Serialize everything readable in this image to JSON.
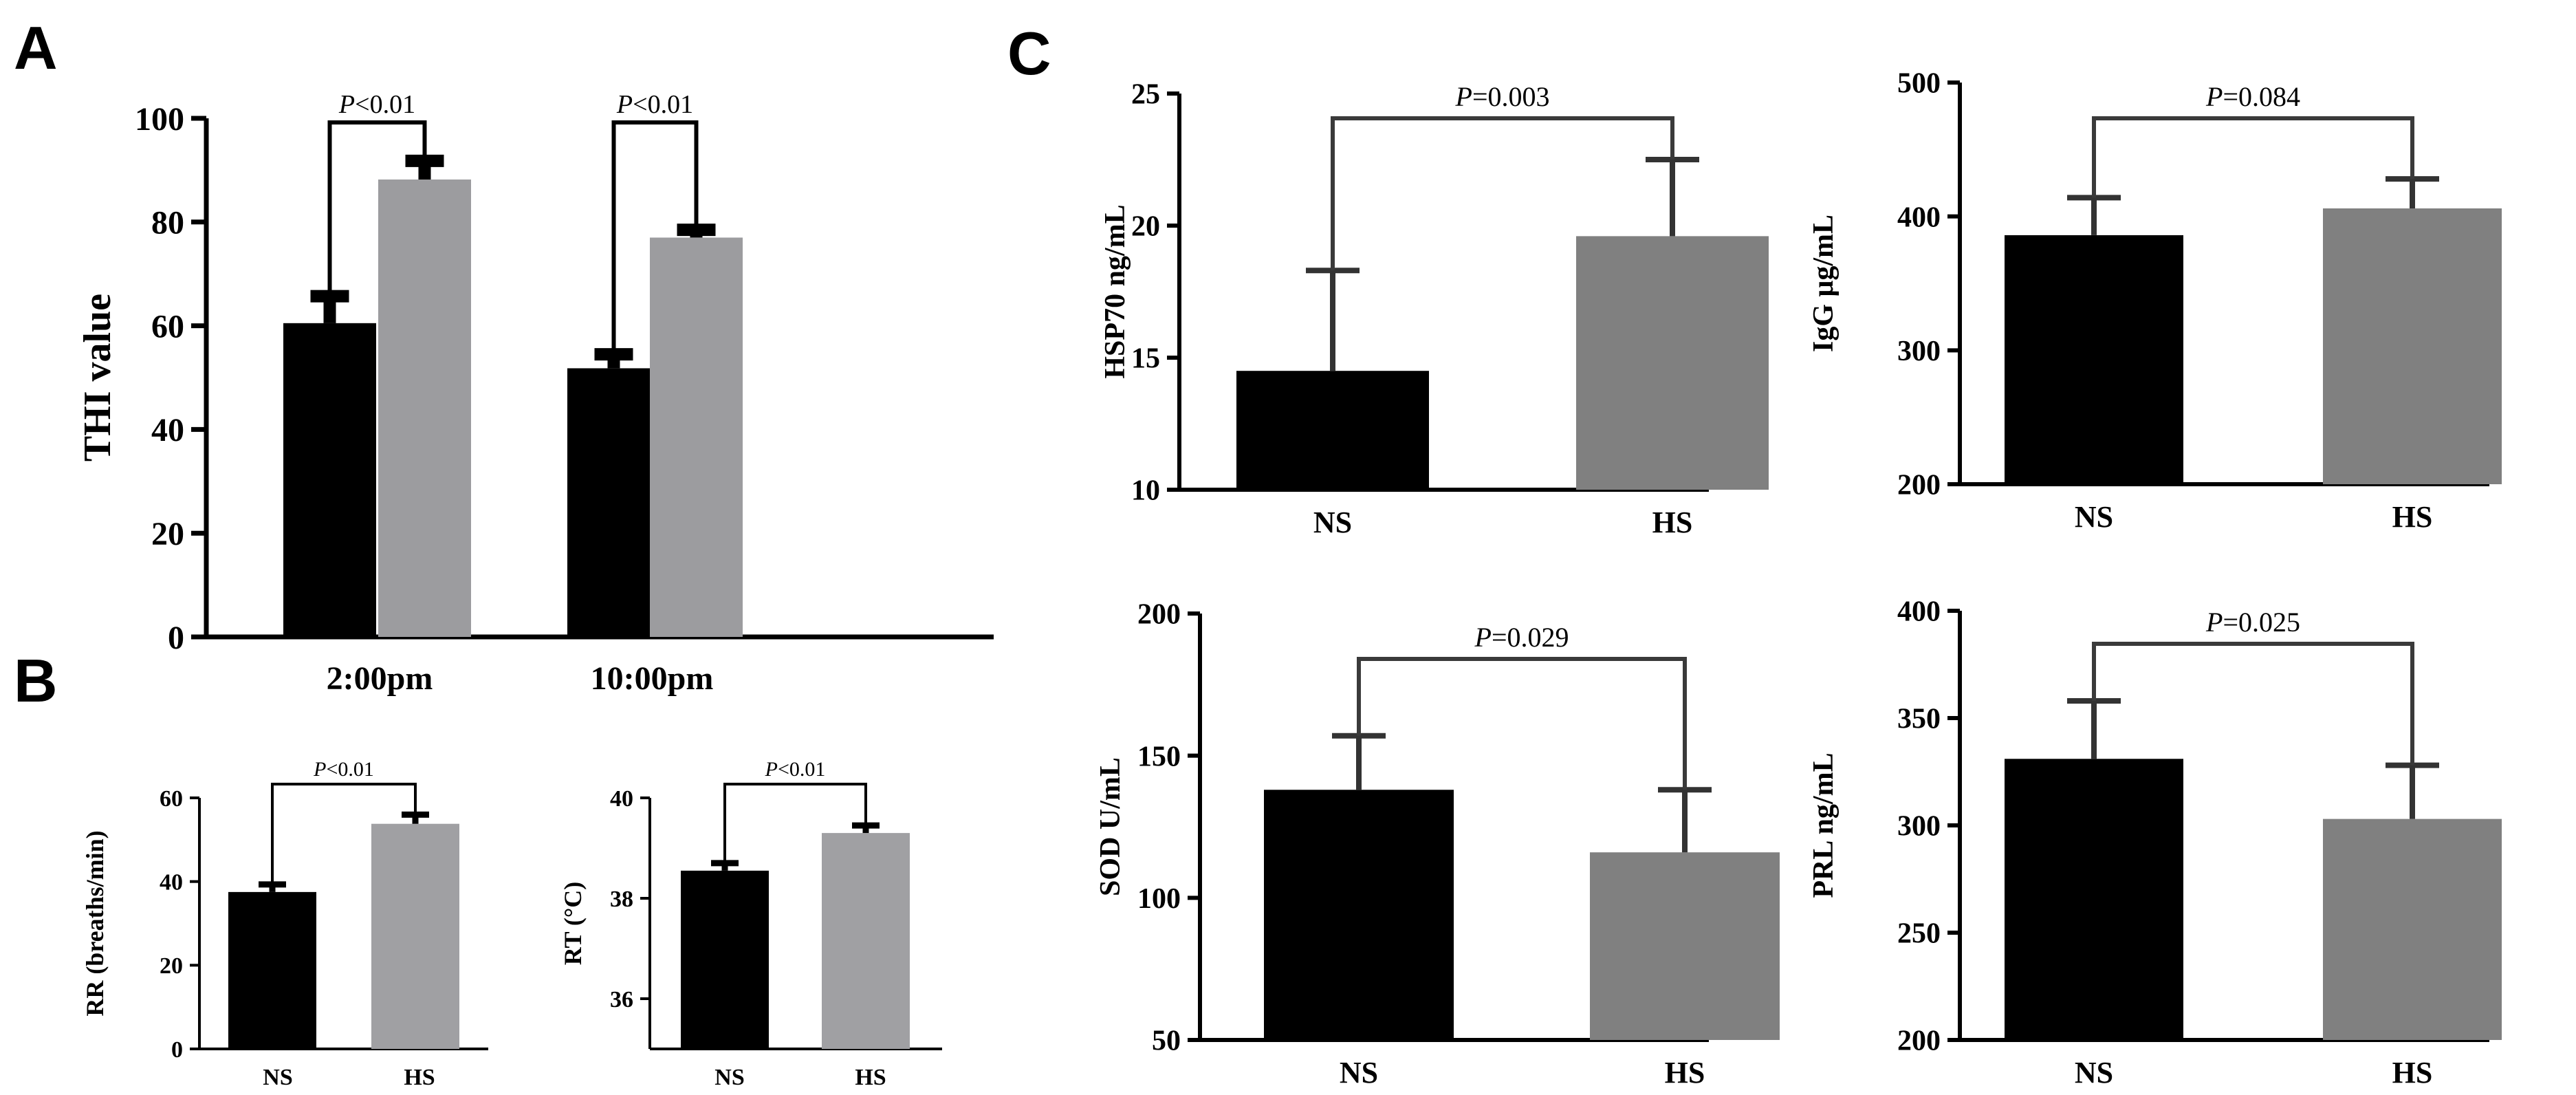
{
  "figure": {
    "panel_letters": [
      "A",
      "B",
      "C"
    ]
  },
  "colors": {
    "NS": "#000000",
    "HS_A": "#9c9c9f",
    "HS_B": "#a0a0a3",
    "HS_C": "#808080",
    "axis": "#000000",
    "bracket": "#3a3a3a"
  },
  "chart_data": [
    {
      "id": "A",
      "type": "bar",
      "title": "",
      "xlabel": "",
      "ylabel": "THI value",
      "categories": [
        "2:00pm",
        "10:00pm"
      ],
      "series": [
        {
          "name": "NS",
          "values": [
            60.5,
            51.8
          ],
          "errors": [
            5.2,
            2.7
          ]
        },
        {
          "name": "HS",
          "values": [
            88.2,
            77.0
          ],
          "errors": [
            3.6,
            1.5
          ]
        }
      ],
      "ylim": [
        0,
        100
      ],
      "yticks": [
        0,
        20,
        40,
        60,
        80,
        100
      ],
      "significance": [
        {
          "text_italic": "P",
          "text_rest": "<0.01"
        },
        {
          "text_italic": "P",
          "text_rest": "<0.01"
        }
      ]
    },
    {
      "id": "B1",
      "type": "bar",
      "ylabel": "RR (breaths/min)",
      "categories": [
        "NS",
        "HS"
      ],
      "values": [
        37.5,
        53.8
      ],
      "errors": [
        1.8,
        2.2
      ],
      "ylim": [
        0,
        60
      ],
      "yticks": [
        0,
        20,
        40,
        60
      ],
      "significance": {
        "text_italic": "P",
        "text_rest": "<0.01"
      }
    },
    {
      "id": "B2",
      "type": "bar",
      "ylabel": "RT (°C)",
      "categories": [
        "NS",
        "HS"
      ],
      "values": [
        38.55,
        39.3
      ],
      "errors": [
        0.15,
        0.15
      ],
      "ylim": [
        35,
        40
      ],
      "yticks": [
        36,
        38,
        40
      ],
      "significance": {
        "text_italic": "P",
        "text_rest": "<0.01"
      }
    },
    {
      "id": "C1",
      "type": "bar",
      "ylabel": "HSP70 ng/mL",
      "categories": [
        "NS",
        "HS"
      ],
      "values": [
        14.5,
        19.6
      ],
      "errors": [
        3.8,
        2.9
      ],
      "ylim": [
        10,
        25
      ],
      "yticks": [
        10,
        15,
        20,
        25
      ],
      "significance": {
        "text_italic": "P",
        "text_rest": "=0.003"
      }
    },
    {
      "id": "C2",
      "type": "bar",
      "ylabel": "IgG μg/mL",
      "categories": [
        "NS",
        "HS"
      ],
      "values": [
        386,
        406
      ],
      "errors": [
        28,
        22
      ],
      "ylim": [
        200,
        500
      ],
      "yticks": [
        200,
        300,
        400,
        500
      ],
      "significance": {
        "text_italic": "P",
        "text_rest": "=0.084"
      }
    },
    {
      "id": "C3",
      "type": "bar",
      "ylabel": "SOD U/mL",
      "categories": [
        "NS",
        "HS"
      ],
      "values": [
        138,
        116
      ],
      "errors": [
        19,
        22
      ],
      "ylim": [
        50,
        200
      ],
      "yticks": [
        50,
        100,
        150,
        200
      ],
      "significance": {
        "text_italic": "P",
        "text_rest": "=0.029"
      }
    },
    {
      "id": "C4",
      "type": "bar",
      "ylabel": "PRL ng/mL",
      "categories": [
        "NS",
        "HS"
      ],
      "values": [
        331,
        303
      ],
      "errors": [
        27,
        25
      ],
      "ylim": [
        200,
        400
      ],
      "yticks": [
        200,
        250,
        300,
        350,
        400
      ],
      "significance": {
        "text_italic": "P",
        "text_rest": "=0.025"
      }
    }
  ]
}
